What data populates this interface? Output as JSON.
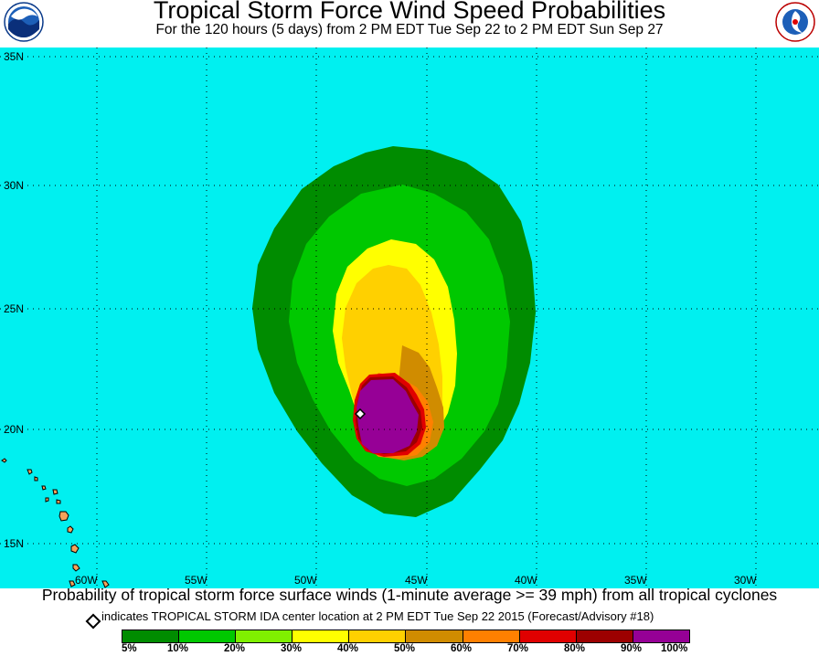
{
  "title": "Tropical Storm Force Wind Speed Probabilities",
  "subtitle": "For the 120 hours (5 days) from 2 PM EDT Tue Sep 22 to 2 PM EDT Sun Sep 27",
  "logos": {
    "left": "NOAA",
    "right": "NATIONAL WEATHER SERVICE"
  },
  "map": {
    "ocean_color": "#00f0f0",
    "land_color": "#f5a25a",
    "lat_labels": [
      "35N",
      "30N",
      "25N",
      "20N",
      "15N"
    ],
    "lon_labels": [
      "60W",
      "55W",
      "50W",
      "45W",
      "40W",
      "35W",
      "30W"
    ],
    "storm_marker": "center-location-diamond"
  },
  "footer": {
    "caption": "Probability of tropical storm force surface winds (1-minute average >= 39 mph) from all tropical cyclones",
    "marker_note": "indicates TROPICAL STORM IDA center location at 2 PM EDT Tue Sep 22 2015 (Forecast/Advisory #18)"
  },
  "legend": {
    "colors": [
      "#008c00",
      "#00c800",
      "#80f000",
      "#ffff00",
      "#ffd000",
      "#d08c00",
      "#ff8000",
      "#e00000",
      "#9c0000",
      "#960096"
    ],
    "labels": [
      "5%",
      "10%",
      "20%",
      "30%",
      "40%",
      "50%",
      "60%",
      "70%",
      "80%",
      "90%",
      "100%"
    ]
  }
}
